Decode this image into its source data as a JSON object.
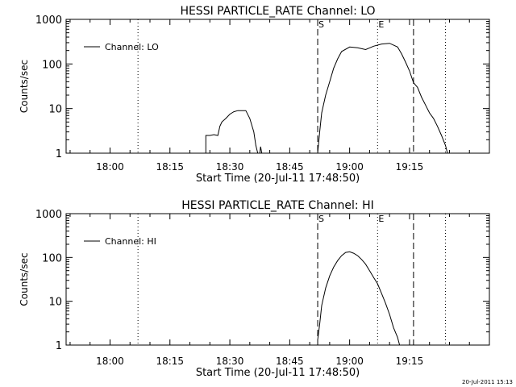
{
  "stamp": "20-Jul-2011 15:13",
  "colors": {
    "line": "#000000",
    "background": "#ffffff"
  },
  "chart_data": [
    {
      "type": "line",
      "title": "HESSI PARTICLE_RATE Channel: LO",
      "xlabel": "Start Time (20-Jul-11 17:48:50)",
      "ylabel": "Counts/sec",
      "yscale": "log",
      "ylim": [
        1,
        1000
      ],
      "xlim": [
        "17:49",
        "19:35"
      ],
      "xticks": [
        "18:00",
        "18:15",
        "18:30",
        "18:45",
        "19:00",
        "19:15"
      ],
      "yticks": [
        "1",
        "10",
        "100",
        "1000"
      ],
      "legend": {
        "position": "top-left",
        "entries": [
          "Channel: LO"
        ]
      },
      "markers": [
        {
          "time": "18:07",
          "style": "dotted",
          "label": ""
        },
        {
          "time": "18:52",
          "style": "dashed",
          "label": "S"
        },
        {
          "time": "19:07",
          "style": "dotted",
          "label": "E"
        },
        {
          "time": "19:16",
          "style": "dashed",
          "label": ""
        },
        {
          "time": "19:24",
          "style": "dotted",
          "label": ""
        }
      ],
      "series": [
        {
          "name": "Channel: LO",
          "segments": [
            [
              [
                "18:24",
                1
              ],
              [
                "18:24",
                2.5
              ],
              [
                "18:25",
                2.5
              ],
              [
                "18:26",
                2.6
              ],
              [
                "18:27",
                2.5
              ],
              [
                "18:27.5",
                4
              ],
              [
                "18:28",
                5
              ],
              [
                "18:29",
                6
              ],
              [
                "18:30",
                7.5
              ],
              [
                "18:31",
                8.5
              ],
              [
                "18:32",
                9
              ],
              [
                "18:33",
                9
              ],
              [
                "18:34",
                9
              ],
              [
                "18:35",
                6
              ],
              [
                "18:36",
                3
              ],
              [
                "18:36.5",
                1.5
              ],
              [
                "18:37",
                1
              ]
            ],
            [
              [
                "18:37.5",
                1
              ],
              [
                "18:37.7",
                1.4
              ],
              [
                "18:38",
                1
              ]
            ],
            [
              [
                "18:52",
                1
              ],
              [
                "18:52.5",
                3
              ],
              [
                "18:53",
                8
              ],
              [
                "18:54",
                20
              ],
              [
                "18:55",
                40
              ],
              [
                "18:56",
                80
              ],
              [
                "18:57",
                130
              ],
              [
                "18:58",
                190
              ],
              [
                "19:00",
                240
              ],
              [
                "19:02",
                230
              ],
              [
                "19:04",
                210
              ],
              [
                "19:06",
                250
              ],
              [
                "19:08",
                280
              ],
              [
                "19:10",
                290
              ],
              [
                "19:12",
                240
              ],
              [
                "19:13",
                170
              ],
              [
                "19:14",
                110
              ],
              [
                "19:15",
                70
              ],
              [
                "19:16",
                38
              ],
              [
                "19:17",
                30
              ],
              [
                "19:18",
                18
              ],
              [
                "19:19",
                12
              ],
              [
                "19:20",
                8
              ],
              [
                "19:21",
                6
              ],
              [
                "19:22",
                4
              ],
              [
                "19:23",
                2.5
              ],
              [
                "19:24",
                1.5
              ],
              [
                "19:24.5",
                1
              ]
            ]
          ]
        }
      ]
    },
    {
      "type": "line",
      "title": "HESSI PARTICLE_RATE Channel: HI",
      "xlabel": "Start Time (20-Jul-11 17:48:50)",
      "ylabel": "Counts/sec",
      "yscale": "log",
      "ylim": [
        1,
        1000
      ],
      "xlim": [
        "17:49",
        "19:35"
      ],
      "xticks": [
        "18:00",
        "18:15",
        "18:30",
        "18:45",
        "19:00",
        "19:15"
      ],
      "yticks": [
        "1",
        "10",
        "100",
        "1000"
      ],
      "legend": {
        "position": "top-left",
        "entries": [
          "Channel: HI"
        ]
      },
      "markers": [
        {
          "time": "18:07",
          "style": "dotted",
          "label": ""
        },
        {
          "time": "18:52",
          "style": "dashed",
          "label": "S"
        },
        {
          "time": "19:07",
          "style": "dotted",
          "label": "E"
        },
        {
          "time": "19:16",
          "style": "dashed",
          "label": ""
        },
        {
          "time": "19:24",
          "style": "dotted",
          "label": ""
        }
      ],
      "series": [
        {
          "name": "Channel: HI",
          "segments": [
            [
              [
                "18:52",
                1.3
              ],
              [
                "18:52.5",
                3
              ],
              [
                "18:53",
                8
              ],
              [
                "18:54",
                20
              ],
              [
                "18:55",
                38
              ],
              [
                "18:56",
                60
              ],
              [
                "18:57",
                85
              ],
              [
                "18:58",
                110
              ],
              [
                "18:59",
                130
              ],
              [
                "19:00",
                135
              ],
              [
                "19:01",
                125
              ],
              [
                "19:02",
                110
              ],
              [
                "19:03",
                90
              ],
              [
                "19:04",
                70
              ],
              [
                "19:05",
                50
              ],
              [
                "19:06",
                35
              ],
              [
                "19:07",
                25
              ],
              [
                "19:08",
                15
              ],
              [
                "19:09",
                9
              ],
              [
                "19:10",
                5
              ],
              [
                "19:11",
                2.5
              ],
              [
                "19:12",
                1.5
              ],
              [
                "19:12.5",
                1
              ]
            ]
          ]
        }
      ]
    }
  ]
}
